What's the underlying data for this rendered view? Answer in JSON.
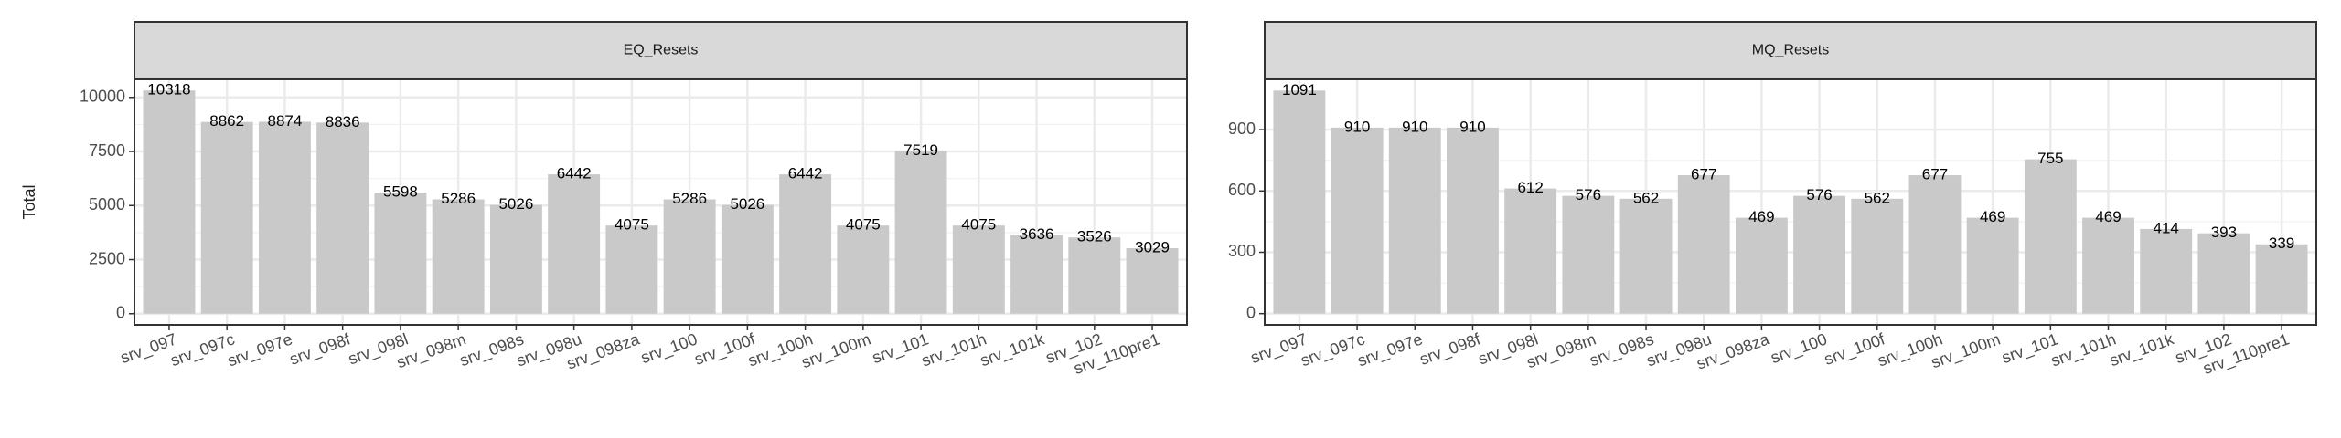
{
  "chart_data": [
    {
      "type": "bar",
      "title": "EQ_Resets",
      "ylabel": "Total",
      "categories": [
        "srv_097",
        "srv_097c",
        "srv_097e",
        "srv_098f",
        "srv_098l",
        "srv_098m",
        "srv_098s",
        "srv_098u",
        "srv_098za",
        "srv_100",
        "srv_100f",
        "srv_100h",
        "srv_100m",
        "srv_101",
        "srv_101h",
        "srv_101k",
        "srv_102",
        "srv_110pre1"
      ],
      "values": [
        10318,
        8862,
        8874,
        8836,
        5598,
        5286,
        5026,
        6442,
        4075,
        5286,
        5026,
        6442,
        4075,
        7519,
        4075,
        3636,
        3526,
        3029
      ],
      "color": "#c9c9c9",
      "ylim": [
        -516,
        10834
      ],
      "yticks": [
        0,
        2500,
        5000,
        7500,
        10000
      ],
      "grid": true
    },
    {
      "type": "bar",
      "title": "MQ_Resets",
      "categories": [
        "srv_097",
        "srv_097c",
        "srv_097e",
        "srv_098f",
        "srv_098l",
        "srv_098m",
        "srv_098s",
        "srv_098u",
        "srv_098za",
        "srv_100",
        "srv_100f",
        "srv_100h",
        "srv_100m",
        "srv_101",
        "srv_101h",
        "srv_101k",
        "srv_102",
        "srv_110pre1"
      ],
      "values": [
        1091,
        910,
        910,
        910,
        612,
        576,
        562,
        677,
        469,
        576,
        562,
        677,
        469,
        755,
        469,
        414,
        393,
        339
      ],
      "color": "#c9c9c9",
      "ylim": [
        -55,
        1146
      ],
      "yticks": [
        0,
        300,
        600,
        900
      ],
      "grid": true
    }
  ]
}
